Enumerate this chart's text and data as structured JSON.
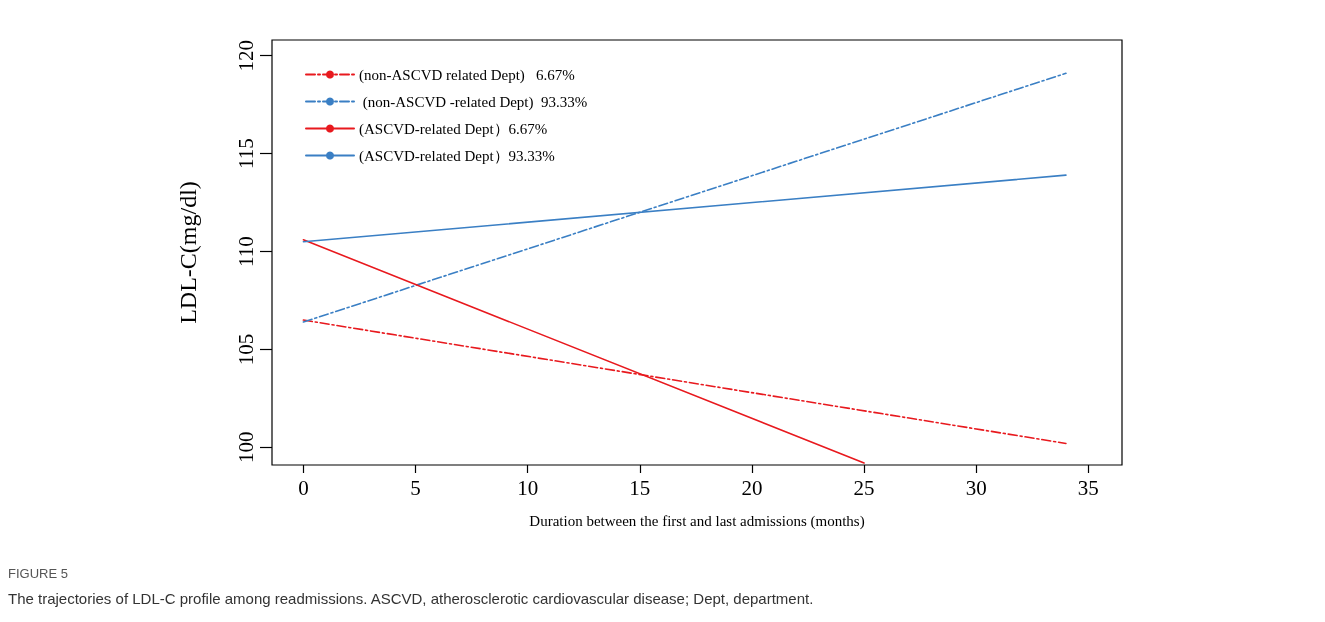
{
  "chart_data": {
    "type": "line",
    "xlabel": "Duration between the first and last admissions (months)",
    "ylabel": "LDL-C(mg/dl)",
    "xlim": [
      -1.4,
      36.5
    ],
    "xticks": [
      0,
      5,
      10,
      15,
      20,
      25,
      30,
      35
    ],
    "ylim": [
      99.1,
      120.8
    ],
    "yticks": [
      100,
      105,
      110,
      115,
      120
    ],
    "grid": false,
    "legend": "top left",
    "marker": "none",
    "series": [
      {
        "name": "(non-ASCVD related Dept)   6.67%",
        "color": "#e8191e",
        "x": [
          0,
          34
        ],
        "values": [
          106.5,
          100.2
        ],
        "line_style": "dashed"
      },
      {
        "name": " (non-ASCVD -related Dept)  93.33%",
        "color": "#3a7fc4",
        "x": [
          0,
          34
        ],
        "values": [
          106.4,
          119.1
        ],
        "line_style": "dashed"
      },
      {
        "name": "(ASCVD-related Dept）6.67%",
        "color": "#e8191e",
        "x": [
          0,
          25
        ],
        "values": [
          110.6,
          99.2
        ],
        "line_style": "solid"
      },
      {
        "name": "(ASCVD-related Dept）93.33%",
        "color": "#3a7fc4",
        "x": [
          0,
          34
        ],
        "values": [
          110.5,
          113.9
        ],
        "line_style": "solid"
      }
    ],
    "annotations": [
      "FIGURE 5",
      "The trajectories of LDL-C profile among readmissions. ASCVD, atherosclerotic cardiovascular disease; Dept, department."
    ]
  }
}
